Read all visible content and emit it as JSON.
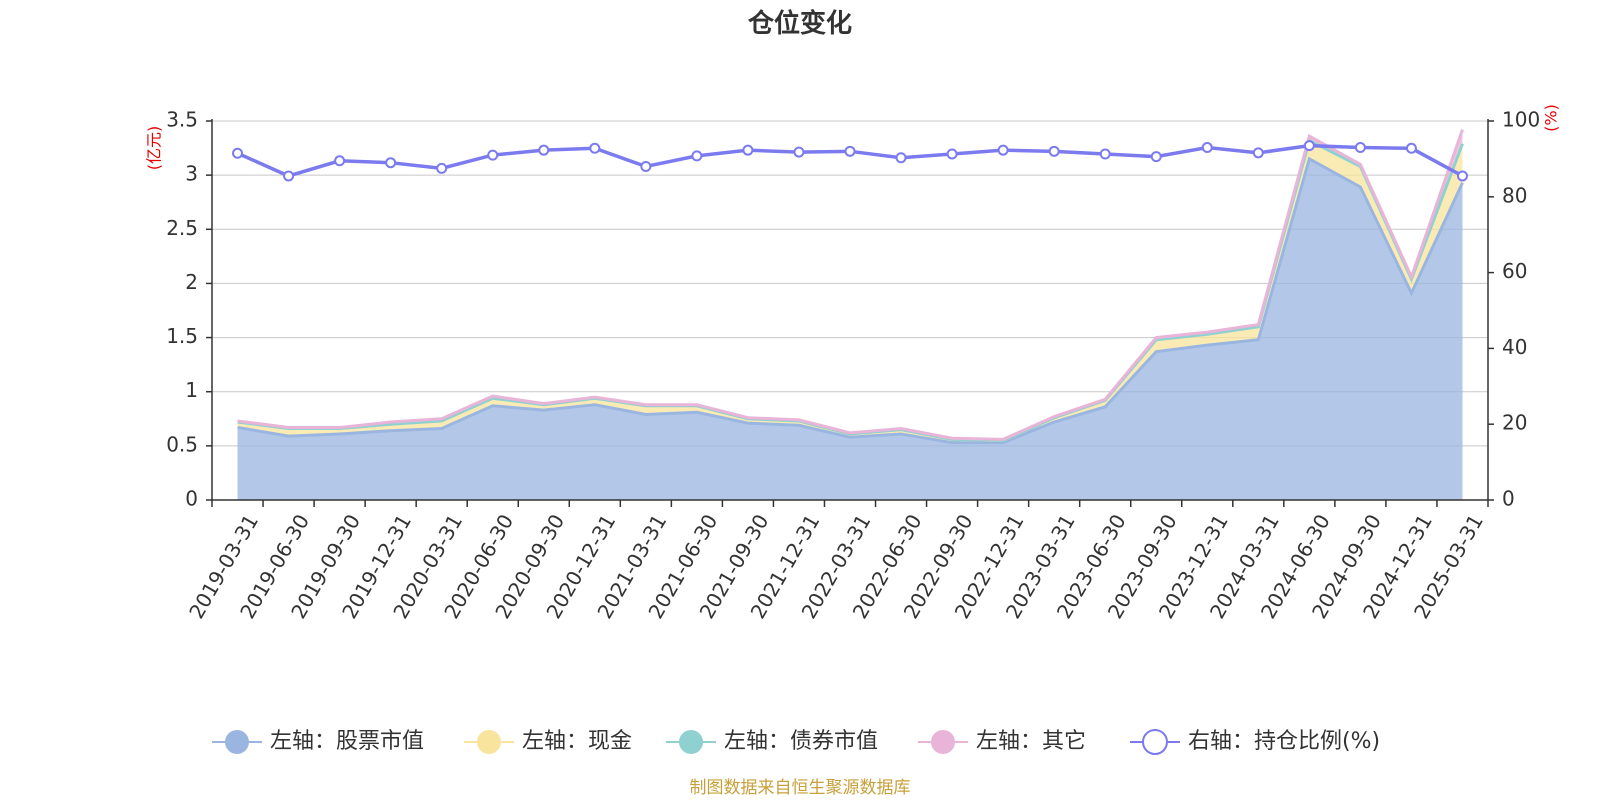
{
  "chart_data": {
    "type": "area",
    "title": "仓位变化",
    "left_unit": "(亿元)",
    "right_unit": "(%)",
    "left_ylim": [
      0,
      3.5
    ],
    "right_ylim": [
      0,
      100
    ],
    "left_ticks": [
      "0",
      "0.5",
      "1",
      "1.5",
      "2",
      "2.5",
      "3",
      "3.5"
    ],
    "right_ticks": [
      "0",
      "20",
      "40",
      "60",
      "80",
      "100"
    ],
    "grid": true,
    "legend_position": "bottom",
    "categories": [
      "2019-03-31",
      "2019-06-30",
      "2019-09-30",
      "2019-12-31",
      "2020-03-31",
      "2020-06-30",
      "2020-09-30",
      "2020-12-31",
      "2021-03-31",
      "2021-06-30",
      "2021-09-30",
      "2021-12-31",
      "2022-03-31",
      "2022-06-30",
      "2022-09-30",
      "2022-12-31",
      "2023-03-31",
      "2023-06-30",
      "2023-09-30",
      "2023-12-31",
      "2024-03-31",
      "2024-06-30",
      "2024-09-30",
      "2024-12-31",
      "2025-03-31"
    ],
    "series": [
      {
        "name": "左轴：股票市值",
        "axis": "left",
        "color": "#9ab6e0",
        "values": [
          0.67,
          0.59,
          0.61,
          0.64,
          0.66,
          0.87,
          0.83,
          0.88,
          0.79,
          0.81,
          0.71,
          0.69,
          0.58,
          0.61,
          0.53,
          0.53,
          0.72,
          0.86,
          1.37,
          1.43,
          1.48,
          3.15,
          2.89,
          1.91,
          2.93
        ]
      },
      {
        "name": "左轴：现金",
        "axis": "left",
        "color": "#f8e49c",
        "values": [
          0.05,
          0.07,
          0.05,
          0.06,
          0.07,
          0.07,
          0.05,
          0.06,
          0.08,
          0.06,
          0.04,
          0.04,
          0.03,
          0.04,
          0.03,
          0.02,
          0.04,
          0.06,
          0.11,
          0.1,
          0.12,
          0.17,
          0.19,
          0.13,
          0.36
        ]
      },
      {
        "name": "左轴：债券市值",
        "axis": "left",
        "color": "#8fd1d1",
        "values": [
          0,
          0,
          0,
          0,
          0,
          0,
          0,
          0,
          0,
          0,
          0,
          0,
          0,
          0,
          0,
          0,
          0,
          0,
          0,
          0,
          0,
          0,
          0,
          0,
          0
        ]
      },
      {
        "name": "左轴：其它",
        "axis": "left",
        "color": "#e8b4d8",
        "values": [
          0.01,
          0.01,
          0.01,
          0.02,
          0.02,
          0.02,
          0.01,
          0.01,
          0.01,
          0.01,
          0.01,
          0.01,
          0.01,
          0.01,
          0.01,
          0.01,
          0.01,
          0.01,
          0.02,
          0.02,
          0.02,
          0.04,
          0.02,
          0.02,
          0.13
        ]
      },
      {
        "name": "右轴：持仓比例(%)",
        "axis": "right",
        "color": "#7b7bef",
        "values": [
          91.5,
          85.5,
          89.5,
          89,
          87.5,
          91,
          92.3,
          92.8,
          88,
          90.8,
          92.3,
          91.8,
          92,
          90.3,
          91.3,
          92.3,
          92,
          91.3,
          90.6,
          93,
          91.6,
          93.5,
          93,
          92.8,
          85.5
        ]
      }
    ]
  },
  "source_text": "制图数据来自恒生聚源数据库"
}
